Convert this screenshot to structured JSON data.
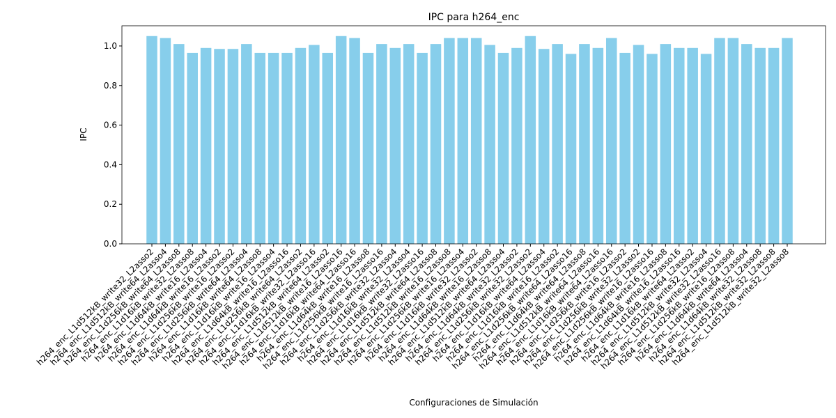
{
  "chart_data": {
    "type": "bar",
    "title": "IPC para h264_enc",
    "xlabel": "Configuraciones de Simulación",
    "ylabel": "IPC",
    "categories": [
      "h264_enc_L1d512kB_write32_L2asso2",
      "h264_enc_L1d512kB_write64_L2asso4",
      "h264_enc_L1d256kB_write64_L2asso8",
      "h264_enc_L1d16kB_write32_L2asso8",
      "h264_enc_L1d64kB_write16_L2asso4",
      "h264_enc_L1d64kB_write16_L2asso2",
      "h264_enc_L1d256kB_write16_L2asso2",
      "h264_enc_L1d256kB_write64_L2asso4",
      "h264_enc_L1d16kB_write64_L2asso8",
      "h264_enc_L1d16kB_write16_L2asso4",
      "h264_enc_L1d64kB_write16_L2asso16",
      "h264_enc_L1d256kB_write64_L2asso2",
      "h264_enc_L1d16kB_write32_L2asso16",
      "h264_enc_L1d512kB_write64_L2asso2",
      "h264_enc_L1d512kB_write16_L2asso16",
      "h264_enc_L1d16kB_write64_L2asso16",
      "h264_enc_L1d64kB_write16_L2asso8",
      "h264_enc_L1d256kB_write16_L2asso16",
      "h264_enc_L1d256kB_write32_L2asso4",
      "h264_enc_L1d16kB_write32_L2asso4",
      "h264_enc_L1d16kB_write32_L2asso16",
      "h264_enc_L1d512kB_write64_L2asso8",
      "h264_enc_L1d512kB_write16_L2asso8",
      "h264_enc_L1d256kB_write16_L2asso4",
      "h264_enc_L1d16kB_write32_L2asso2",
      "h264_enc_L1d64kB_write16_L2asso8",
      "h264_enc_L1d512kB_write64_L2asso4",
      "h264_enc_L1d64kB_write32_L2asso2",
      "h264_enc_L1d256kB_write32_L2asso2",
      "h264_enc_L1d16kB_write64_L2asso4",
      "h264_enc_L1d16kB_write16_L2asso2",
      "h264_enc_L1d256kB_write64_L2asso16",
      "h264_enc_L1d64kB_write64_L2asso8",
      "h264_enc_L1d512kB_write64_L2asso16",
      "h264_enc_L1d16kB_write64_L2asso16",
      "h264_enc_L1d256kB_write16_L2asso2",
      "h264_enc_L1d256kB_write32_L2asso2",
      "h264_enc_L1d256kB_write16_L2asso16",
      "h264_enc_L1d64kB_write16_L2asso8",
      "h264_enc_L1d64kB_write16_L2asso16",
      "h264_enc_L1d16kB_write64_L2asso2",
      "h264_enc_L1d512kB_write32_L2asso4",
      "h264_enc_L1d512kB_write32_L2asso16",
      "h264_enc_L1d256kB_write16_L2asso8",
      "h264_enc_L1d64kB_write64_L2asso4",
      "h264_enc_L1d64kB_write32_L2asso8",
      "h264_enc_L1d512kB_write32_L2asso8",
      "h264_enc_L1d512kB_write32_L2asso8"
    ],
    "values": [
      1.05,
      1.04,
      1.01,
      0.965,
      0.99,
      0.985,
      0.985,
      1.01,
      0.965,
      0.965,
      0.965,
      0.99,
      1.005,
      0.965,
      1.05,
      1.04,
      0.965,
      1.01,
      0.99,
      1.01,
      0.965,
      1.01,
      1.04,
      1.04,
      1.04,
      1.005,
      0.965,
      0.99,
      1.05,
      0.985,
      1.01,
      0.96,
      1.01,
      0.99,
      1.04,
      0.965,
      1.005,
      0.96,
      1.01,
      0.99,
      0.99,
      0.96,
      1.04,
      1.04,
      1.01,
      0.99,
      0.99,
      1.04
    ],
    "color": "#87ceeb",
    "ylim": [
      0,
      1.102
    ],
    "yticks": [
      {
        "value": 0,
        "label": "0.0"
      },
      {
        "value": 0.2,
        "label": "0.2"
      },
      {
        "value": 0.4,
        "label": "0.4"
      },
      {
        "value": 0.6,
        "label": "0.6"
      },
      {
        "value": 0.8,
        "label": "0.8"
      },
      {
        "value": 1,
        "label": "1.0"
      }
    ]
  }
}
